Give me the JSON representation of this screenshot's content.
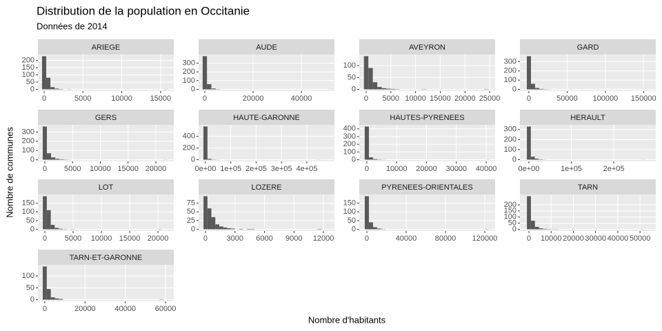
{
  "title": "Distribution de la population en Occitanie",
  "subtitle": "Données de 2014",
  "xlabel": "Nombre d'habitants",
  "ylabel": "Nombre de communes",
  "chart_data": [
    {
      "type": "histogram",
      "title": "ARIEGE",
      "color": "#595959",
      "grid": true,
      "bins": [
        -270,
        270,
        810,
        1350,
        1890,
        2430,
        2970,
        3510,
        4050,
        4590,
        5130,
        5670,
        6210,
        6750,
        7290,
        7830,
        8370,
        8910,
        9450,
        9990,
        10530,
        11070,
        11610,
        12150,
        12690,
        13230,
        13770,
        14310,
        14850,
        15390,
        15930
      ],
      "counts": [
        230,
        80,
        15,
        5,
        2,
        0,
        1,
        0,
        0,
        0,
        0,
        0,
        0,
        0,
        0,
        0,
        0,
        0,
        0,
        0,
        0,
        0,
        0,
        0,
        0,
        0,
        0,
        0,
        0,
        1
      ],
      "xlim": [
        -800,
        16700
      ],
      "xticks": [
        0,
        5000,
        10000,
        15000
      ],
      "ylim": [
        -12,
        242
      ],
      "yticks": [
        0,
        50,
        100,
        150,
        200
      ]
    },
    {
      "type": "histogram",
      "title": "AUDE",
      "color": "#595959",
      "grid": true,
      "bins": [
        -900,
        900,
        2700,
        4500,
        6300,
        8100,
        9900,
        11700,
        13500,
        15300,
        17100,
        18900,
        20700,
        22500,
        24300,
        26100,
        27900,
        29700,
        31500,
        33300,
        35100,
        36900,
        38700,
        40500,
        42300,
        44100,
        45900,
        47700,
        49500,
        51300,
        53100
      ],
      "counts": [
        380,
        60,
        10,
        2,
        0,
        0,
        0,
        0,
        0,
        0,
        0,
        0,
        0,
        0,
        0,
        0,
        0,
        0,
        0,
        0,
        0,
        0,
        0,
        0,
        0,
        0,
        0,
        0,
        0,
        1
      ],
      "xlim": [
        -2570,
        53700
      ],
      "xticks": [
        0,
        20000,
        40000
      ],
      "ylim": [
        -19,
        399
      ],
      "yticks": [
        0,
        100,
        200,
        300
      ]
    },
    {
      "type": "histogram",
      "title": "AVEYRON",
      "color": "#595959",
      "grid": true,
      "bins": [
        -450,
        450,
        1350,
        2250,
        3150,
        4050,
        4950,
        5850,
        6750,
        7650,
        8550,
        9450,
        10350,
        11250,
        12150,
        13050,
        13950,
        14850,
        15750,
        16650,
        17550,
        18450,
        19350,
        20250,
        21150,
        22050,
        22950,
        23850,
        24750,
        25650,
        26550
      ],
      "counts": [
        140,
        90,
        30,
        10,
        5,
        3,
        2,
        1,
        0,
        0,
        0,
        0,
        0,
        1,
        0,
        0,
        0,
        0,
        0,
        0,
        0,
        0,
        0,
        0,
        0,
        0,
        0,
        1,
        0,
        0
      ],
      "xlim": [
        -1390,
        26100
      ],
      "xticks": [
        0,
        5000,
        10000,
        15000,
        20000,
        25000
      ],
      "ylim": [
        -7,
        147
      ],
      "yticks": [
        0,
        50,
        100
      ]
    },
    {
      "type": "histogram",
      "title": "GARD",
      "color": "#595959",
      "grid": true,
      "bins": [
        -2700,
        2700,
        8100,
        13500,
        18900,
        24300,
        29700,
        35100,
        40500,
        45900,
        51300,
        56700,
        62100,
        67500,
        72900,
        78300,
        83700,
        89100,
        94500,
        99900,
        105300,
        110700,
        116100,
        121500,
        126900,
        132300,
        137700,
        143100,
        148500,
        153900,
        159300
      ],
      "counts": [
        360,
        60,
        15,
        5,
        2,
        1,
        0,
        0,
        0,
        0,
        0,
        0,
        0,
        0,
        0,
        0,
        0,
        0,
        0,
        0,
        0,
        0,
        0,
        0,
        0,
        0,
        0,
        0,
        1,
        0
      ],
      "xlim": [
        -11700,
        166000
      ],
      "xticks": [
        0,
        50000,
        100000,
        150000
      ],
      "ylim": [
        -18,
        378
      ],
      "yticks": [
        0,
        100,
        200,
        300
      ]
    },
    {
      "type": "histogram",
      "title": "GERS",
      "color": "#595959",
      "grid": true,
      "bins": [
        -375,
        375,
        1125,
        1875,
        2625,
        3375,
        4125,
        4875,
        5625,
        6375,
        7125,
        7875,
        8625,
        9375,
        10125,
        10875,
        11625,
        12375,
        13125,
        13875,
        14625,
        15375,
        16125,
        16875,
        17625,
        18375,
        19125,
        19875,
        20625,
        21375,
        22125
      ],
      "counts": [
        360,
        70,
        25,
        10,
        5,
        2,
        1,
        0,
        0,
        0,
        0,
        0,
        0,
        0,
        0,
        0,
        0,
        0,
        0,
        0,
        0,
        0,
        0,
        0,
        0,
        0,
        0,
        0,
        0,
        1
      ],
      "xlim": [
        -1240,
        23230
      ],
      "xticks": [
        0,
        5000,
        10000,
        15000,
        20000
      ],
      "ylim": [
        -18,
        378
      ],
      "yticks": [
        0,
        100,
        200,
        300
      ]
    },
    {
      "type": "histogram",
      "title": "HAUTE-GARONNE",
      "color": "#595959",
      "grid": true,
      "bins": [
        -8000,
        8000,
        24000,
        40000,
        56000,
        72000,
        88000,
        104000,
        120000,
        136000,
        152000,
        168000,
        184000,
        200000,
        216000,
        232000,
        248000,
        264000,
        280000,
        296000,
        312000,
        328000,
        344000,
        360000,
        376000,
        392000,
        408000,
        424000,
        440000,
        456000,
        472000
      ],
      "counts": [
        570,
        15,
        3,
        1,
        0,
        0,
        0,
        0,
        0,
        0,
        0,
        0,
        0,
        0,
        0,
        0,
        0,
        0,
        0,
        0,
        0,
        0,
        0,
        0,
        0,
        0,
        0,
        0,
        1,
        0
      ],
      "xlim": [
        -27000,
        509000
      ],
      "xticks": [
        {
          "value": 0,
          "label": "0e+00"
        },
        {
          "value": 100000,
          "label": "1e+05"
        },
        {
          "value": 200000,
          "label": "2e+05"
        },
        {
          "value": 300000,
          "label": "3e+05"
        },
        {
          "value": 400000,
          "label": "4e+05"
        }
      ],
      "ylim": [
        -28,
        598
      ],
      "yticks": [
        0,
        200,
        400
      ]
    },
    {
      "type": "histogram",
      "title": "HAUTES-PYRENEES",
      "color": "#595959",
      "grid": true,
      "bins": [
        -700,
        700,
        2100,
        3500,
        4900,
        6300,
        7700,
        9100,
        10500,
        11900,
        13300,
        14700,
        16100,
        17500,
        18900,
        20300,
        21700,
        23100,
        24500,
        25900,
        27300,
        28700,
        30100,
        31500,
        32900,
        34300,
        35700,
        37100,
        38500,
        39900,
        41300
      ],
      "counts": [
        430,
        30,
        8,
        3,
        1,
        0,
        0,
        0,
        0,
        0,
        0,
        0,
        0,
        0,
        0,
        0,
        0,
        0,
        0,
        0,
        0,
        0,
        0,
        0,
        0,
        0,
        0,
        0,
        0,
        1
      ],
      "xlim": [
        -2530,
        43000
      ],
      "xticks": [
        0,
        10000,
        20000,
        30000,
        40000
      ],
      "ylim": [
        -22,
        452
      ],
      "yticks": [
        0,
        100,
        200,
        300,
        400
      ]
    },
    {
      "type": "histogram",
      "title": "HERAULT",
      "color": "#595959",
      "grid": true,
      "bins": [
        -4650,
        4650,
        13950,
        23250,
        32550,
        41850,
        51150,
        60450,
        69750,
        79050,
        88350,
        97650,
        106950,
        116250,
        125550,
        134850,
        144150,
        153450,
        162750,
        172050,
        181350,
        190650,
        199950,
        209250,
        218550,
        227850,
        237150,
        246450,
        255750,
        265050,
        274350
      ],
      "counts": [
        330,
        30,
        10,
        3,
        1,
        0,
        0,
        0,
        0,
        0,
        0,
        0,
        0,
        0,
        0,
        0,
        0,
        0,
        0,
        0,
        0,
        0,
        0,
        0,
        0,
        0,
        0,
        0,
        0,
        1
      ],
      "xlim": [
        -21000,
        299000
      ],
      "xticks": [
        {
          "value": 0,
          "label": "0e+00"
        },
        {
          "value": 100000,
          "label": "1e+05"
        },
        {
          "value": 200000,
          "label": "2e+05"
        }
      ],
      "ylim": [
        -17,
        347
      ],
      "yticks": [
        0,
        100,
        200,
        300
      ]
    },
    {
      "type": "histogram",
      "title": "LOT",
      "color": "#595959",
      "grid": true,
      "bins": [
        -350,
        350,
        1050,
        1750,
        2450,
        3150,
        3850,
        4550,
        5250,
        5950,
        6650,
        7350,
        8050,
        8750,
        9450,
        10150,
        10850,
        11550,
        12250,
        12950,
        13650,
        14350,
        15050,
        15750,
        16450,
        17150,
        17850,
        18550,
        19250,
        19950,
        20650
      ],
      "counts": [
        190,
        110,
        25,
        8,
        3,
        1,
        0,
        1,
        0,
        0,
        0,
        0,
        0,
        0,
        0,
        0,
        0,
        0,
        0,
        0,
        0,
        0,
        0,
        0,
        0,
        0,
        0,
        0,
        0,
        1
      ],
      "xlim": [
        -1220,
        22800
      ],
      "xticks": [
        0,
        5000,
        10000,
        15000,
        20000
      ],
      "ylim": [
        -10,
        200
      ],
      "yticks": [
        0,
        50,
        100,
        150
      ]
    },
    {
      "type": "histogram",
      "title": "LOZERE",
      "color": "#595959",
      "grid": true,
      "bins": [
        -200,
        200,
        600,
        1000,
        1400,
        1800,
        2200,
        2600,
        3000,
        3400,
        3800,
        4200,
        4600,
        5000,
        5400,
        5800,
        6200,
        6600,
        7000,
        7400,
        7800,
        8200,
        8600,
        9000,
        9400,
        9800,
        10200,
        10600,
        11000,
        11400,
        11800
      ],
      "counts": [
        95,
        60,
        35,
        14,
        8,
        5,
        3,
        2,
        0,
        1,
        0,
        1,
        1,
        0,
        0,
        0,
        0,
        0,
        0,
        0,
        0,
        0,
        0,
        0,
        0,
        0,
        0,
        0,
        0,
        1
      ],
      "xlim": [
        -700,
        13120
      ],
      "xticks": [
        0,
        3000,
        6000,
        9000,
        12000
      ],
      "ylim": [
        -5,
        100
      ],
      "yticks": [
        0,
        25,
        50,
        75
      ]
    },
    {
      "type": "histogram",
      "title": "PYRENEES-ORIENTALES",
      "color": "#595959",
      "grid": true,
      "bins": [
        -2100,
        2100,
        6300,
        10500,
        14700,
        18900,
        23100,
        27300,
        31500,
        35700,
        39900,
        44100,
        48300,
        52500,
        56700,
        60900,
        65100,
        69300,
        73500,
        77700,
        81900,
        86100,
        90300,
        94500,
        98700,
        102900,
        107100,
        111300,
        115500,
        119700,
        123900
      ],
      "counts": [
        190,
        40,
        12,
        4,
        1,
        0,
        0,
        0,
        0,
        0,
        0,
        0,
        0,
        0,
        0,
        0,
        0,
        0,
        0,
        0,
        0,
        0,
        0,
        0,
        0,
        0,
        0,
        0,
        0,
        1
      ],
      "xlim": [
        -7700,
        130500
      ],
      "xticks": [
        0,
        40000,
        80000,
        120000
      ],
      "ylim": [
        -10,
        200
      ],
      "yticks": [
        0,
        50,
        100,
        150
      ]
    },
    {
      "type": "histogram",
      "title": "TARN",
      "color": "#595959",
      "grid": true,
      "bins": [
        -900,
        900,
        2700,
        4500,
        6300,
        8100,
        9900,
        11700,
        13500,
        15300,
        17100,
        18900,
        20700,
        22500,
        24300,
        26100,
        27900,
        29700,
        31500,
        33300,
        35100,
        36900,
        38700,
        40500,
        42300,
        44100,
        45900,
        47700,
        49500,
        51300,
        53100
      ],
      "counts": [
        270,
        70,
        20,
        8,
        4,
        2,
        1,
        1,
        0,
        0,
        0,
        0,
        0,
        0,
        0,
        0,
        0,
        0,
        0,
        0,
        0,
        0,
        0,
        0,
        0,
        0,
        0,
        0,
        1,
        0
      ],
      "xlim": [
        -4040,
        57100
      ],
      "xticks": [
        0,
        10000,
        20000,
        30000,
        40000,
        50000
      ],
      "ylim": [
        -14,
        284
      ],
      "yticks": [
        0,
        50,
        100,
        150,
        200
      ]
    },
    {
      "type": "histogram",
      "title": "TARN-ET-GARONNE",
      "color": "#595959",
      "grid": true,
      "bins": [
        -1000,
        1000,
        3000,
        5000,
        7000,
        9000,
        11000,
        13000,
        15000,
        17000,
        19000,
        21000,
        23000,
        25000,
        27000,
        29000,
        31000,
        33000,
        35000,
        37000,
        39000,
        41000,
        43000,
        45000,
        47000,
        49000,
        51000,
        53000,
        55000,
        57000,
        59000
      ],
      "counts": [
        140,
        45,
        10,
        5,
        3,
        0,
        0,
        0,
        0,
        0,
        0,
        0,
        0,
        0,
        0,
        0,
        0,
        0,
        0,
        0,
        0,
        0,
        0,
        0,
        0,
        0,
        0,
        0,
        0,
        1
      ],
      "xlim": [
        -3400,
        64100
      ],
      "xticks": [
        0,
        20000,
        40000,
        60000
      ],
      "ylim": [
        -7,
        147
      ],
      "yticks": [
        0,
        50,
        100
      ]
    }
  ]
}
